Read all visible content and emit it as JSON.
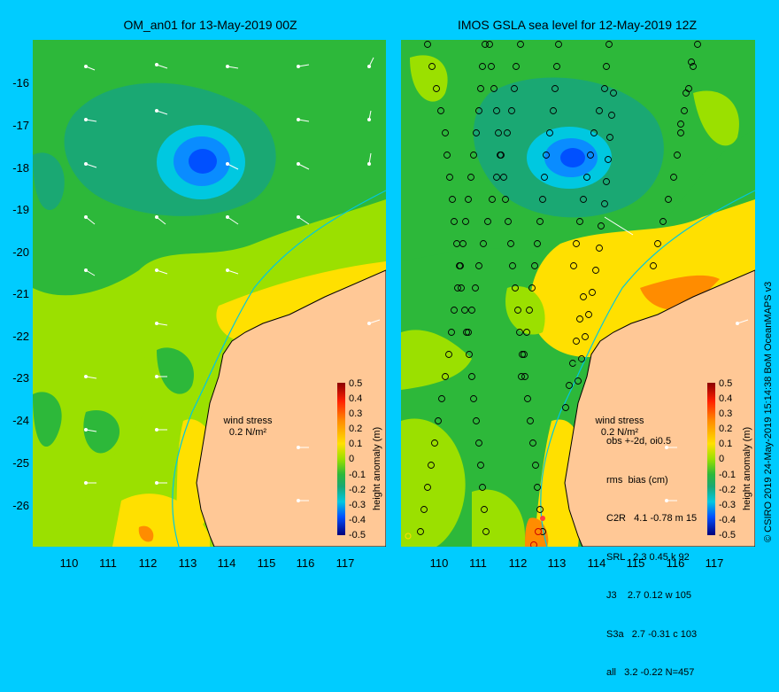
{
  "left_panel": {
    "title": "OM_an01 for 13-May-2019 00Z",
    "wind_label_line1": "wind stress",
    "wind_label_line2": "0.2 N/m²"
  },
  "right_panel": {
    "title": "IMOS GSLA sea level  for 12-May-2019 12Z",
    "wind_label_line1": "wind stress",
    "wind_label_line2": "0.2 N/m²",
    "stats": {
      "header1": "obs +-2d, oi0.5",
      "header2": "rms  bias (cm)",
      "rows": [
        "C2R   4.1 -0.78 m 15",
        "SRL   2.3 0.45 k 92",
        "J3    2.7 0.12 w 105",
        "S3a   2.7 -0.31 c 103",
        "all   3.2 -0.22 N=457"
      ]
    }
  },
  "latitudes": [
    "-16",
    "-17",
    "-18",
    "-19",
    "-20",
    "-21",
    "-22",
    "-23",
    "-24",
    "-25",
    "-26"
  ],
  "longitudes": [
    "110",
    "111",
    "112",
    "113",
    "114",
    "115",
    "116",
    "117"
  ],
  "colorbar": {
    "title": "height anomaly (m)",
    "ticks": [
      "0.5",
      "0.4",
      "0.3",
      "0.2",
      "0.1",
      "0",
      "-0.1",
      "-0.2",
      "-0.3",
      "-0.4",
      "-0.5"
    ],
    "colors": {
      "high": "#8b0000",
      "orange": "#ff8c00",
      "yellow": "#ffe000",
      "light_green": "#9be000",
      "green": "#2db83a",
      "teal": "#1aa873",
      "cyan": "#00c8e0",
      "blue": "#0050ff",
      "low": "#00007a"
    },
    "land": "#ffc896",
    "background": "#00ccff"
  },
  "credit": "© CSIRO 2019   24-May-2019 15:14:38 BoM OceanMAPS v3"
}
